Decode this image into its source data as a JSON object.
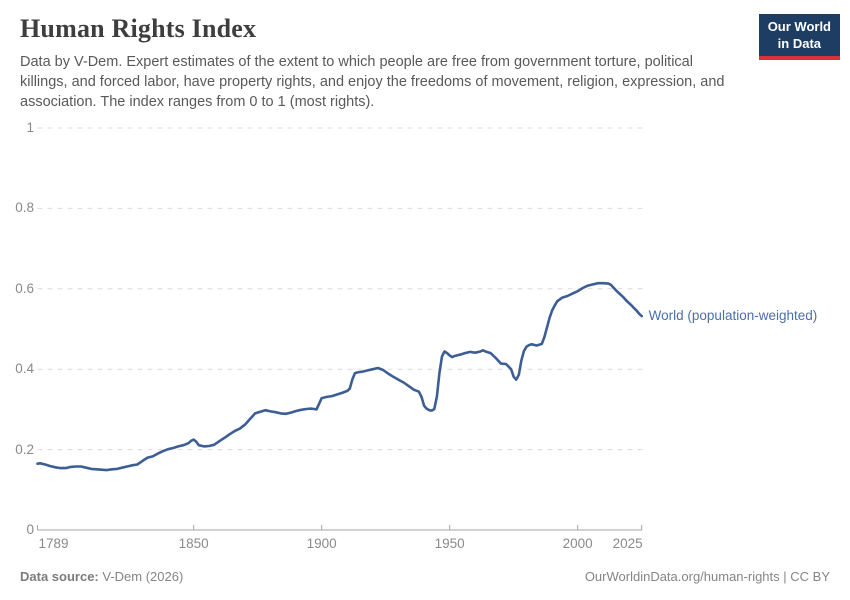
{
  "header": {
    "title": "Human Rights Index",
    "subtitle": "Data by V-Dem. Expert estimates of the extent to which people are free from government torture, political killings, and forced labor, have property rights, and enjoy the freedoms of movement, religion, expression, and association. The index ranges from 0 to 1 (most rights).",
    "logo": {
      "line1": "Our World",
      "line2": "in Data",
      "bg_color": "#1d3d63",
      "accent_color": "#d7333f"
    }
  },
  "chart_data": {
    "type": "line",
    "title": "Human Rights Index",
    "xlabel": "",
    "ylabel": "",
    "xlim": [
      1789,
      2025
    ],
    "ylim": [
      0,
      1
    ],
    "grid": "horizontal dashed gridlines at 0.2 intervals",
    "legend_position": "right-of-line-end",
    "x_ticks": [
      1789,
      1850,
      1900,
      1950,
      2000,
      2025
    ],
    "y_ticks": [
      0,
      0.2,
      0.4,
      0.6,
      0.8,
      1
    ],
    "series": [
      {
        "name": "World (population-weighted)",
        "line_color": "#3d5e95",
        "label_color": "#4c6fab",
        "points": [
          [
            1789,
            0.165
          ],
          [
            1790,
            0.166
          ],
          [
            1792,
            0.163
          ],
          [
            1794,
            0.159
          ],
          [
            1796,
            0.156
          ],
          [
            1798,
            0.154
          ],
          [
            1800,
            0.154
          ],
          [
            1802,
            0.157
          ],
          [
            1804,
            0.158
          ],
          [
            1806,
            0.158
          ],
          [
            1808,
            0.155
          ],
          [
            1810,
            0.152
          ],
          [
            1812,
            0.151
          ],
          [
            1814,
            0.15
          ],
          [
            1816,
            0.149
          ],
          [
            1818,
            0.151
          ],
          [
            1820,
            0.152
          ],
          [
            1822,
            0.155
          ],
          [
            1824,
            0.158
          ],
          [
            1826,
            0.161
          ],
          [
            1828,
            0.163
          ],
          [
            1830,
            0.172
          ],
          [
            1832,
            0.18
          ],
          [
            1834,
            0.183
          ],
          [
            1836,
            0.19
          ],
          [
            1838,
            0.196
          ],
          [
            1840,
            0.201
          ],
          [
            1842,
            0.204
          ],
          [
            1844,
            0.208
          ],
          [
            1846,
            0.211
          ],
          [
            1848,
            0.216
          ],
          [
            1849,
            0.222
          ],
          [
            1850,
            0.225
          ],
          [
            1851,
            0.22
          ],
          [
            1852,
            0.211
          ],
          [
            1854,
            0.208
          ],
          [
            1856,
            0.209
          ],
          [
            1858,
            0.212
          ],
          [
            1860,
            0.221
          ],
          [
            1862,
            0.229
          ],
          [
            1864,
            0.238
          ],
          [
            1866,
            0.246
          ],
          [
            1868,
            0.252
          ],
          [
            1870,
            0.262
          ],
          [
            1872,
            0.276
          ],
          [
            1874,
            0.29
          ],
          [
            1876,
            0.294
          ],
          [
            1878,
            0.298
          ],
          [
            1880,
            0.295
          ],
          [
            1882,
            0.293
          ],
          [
            1884,
            0.29
          ],
          [
            1886,
            0.289
          ],
          [
            1888,
            0.292
          ],
          [
            1890,
            0.296
          ],
          [
            1892,
            0.299
          ],
          [
            1894,
            0.301
          ],
          [
            1896,
            0.302
          ],
          [
            1898,
            0.3
          ],
          [
            1900,
            0.328
          ],
          [
            1902,
            0.331
          ],
          [
            1904,
            0.333
          ],
          [
            1906,
            0.337
          ],
          [
            1908,
            0.341
          ],
          [
            1910,
            0.346
          ],
          [
            1911,
            0.352
          ],
          [
            1912,
            0.375
          ],
          [
            1913,
            0.39
          ],
          [
            1914,
            0.392
          ],
          [
            1916,
            0.394
          ],
          [
            1918,
            0.397
          ],
          [
            1920,
            0.4
          ],
          [
            1922,
            0.403
          ],
          [
            1924,
            0.398
          ],
          [
            1926,
            0.389
          ],
          [
            1928,
            0.381
          ],
          [
            1930,
            0.374
          ],
          [
            1932,
            0.367
          ],
          [
            1934,
            0.358
          ],
          [
            1936,
            0.349
          ],
          [
            1938,
            0.344
          ],
          [
            1939,
            0.331
          ],
          [
            1940,
            0.309
          ],
          [
            1941,
            0.302
          ],
          [
            1942,
            0.298
          ],
          [
            1943,
            0.297
          ],
          [
            1944,
            0.301
          ],
          [
            1945,
            0.332
          ],
          [
            1946,
            0.39
          ],
          [
            1947,
            0.432
          ],
          [
            1948,
            0.444
          ],
          [
            1949,
            0.44
          ],
          [
            1950,
            0.434
          ],
          [
            1951,
            0.43
          ],
          [
            1952,
            0.433
          ],
          [
            1954,
            0.436
          ],
          [
            1956,
            0.44
          ],
          [
            1958,
            0.443
          ],
          [
            1960,
            0.441
          ],
          [
            1962,
            0.444
          ],
          [
            1963,
            0.447
          ],
          [
            1964,
            0.444
          ],
          [
            1966,
            0.44
          ],
          [
            1968,
            0.428
          ],
          [
            1970,
            0.414
          ],
          [
            1972,
            0.413
          ],
          [
            1974,
            0.4
          ],
          [
            1975,
            0.381
          ],
          [
            1976,
            0.374
          ],
          [
            1977,
            0.386
          ],
          [
            1978,
            0.421
          ],
          [
            1979,
            0.445
          ],
          [
            1980,
            0.456
          ],
          [
            1981,
            0.46
          ],
          [
            1982,
            0.462
          ],
          [
            1984,
            0.459
          ],
          [
            1986,
            0.463
          ],
          [
            1987,
            0.48
          ],
          [
            1988,
            0.503
          ],
          [
            1989,
            0.527
          ],
          [
            1990,
            0.546
          ],
          [
            1991,
            0.558
          ],
          [
            1992,
            0.569
          ],
          [
            1994,
            0.578
          ],
          [
            1996,
            0.582
          ],
          [
            1998,
            0.588
          ],
          [
            2000,
            0.594
          ],
          [
            2002,
            0.602
          ],
          [
            2004,
            0.608
          ],
          [
            2006,
            0.611
          ],
          [
            2008,
            0.614
          ],
          [
            2010,
            0.614
          ],
          [
            2012,
            0.613
          ],
          [
            2013,
            0.61
          ],
          [
            2014,
            0.603
          ],
          [
            2015,
            0.596
          ],
          [
            2016,
            0.59
          ],
          [
            2017,
            0.584
          ],
          [
            2018,
            0.578
          ],
          [
            2019,
            0.571
          ],
          [
            2020,
            0.565
          ],
          [
            2021,
            0.559
          ],
          [
            2022,
            0.552
          ],
          [
            2023,
            0.546
          ],
          [
            2024,
            0.538
          ],
          [
            2025,
            0.532
          ]
        ]
      }
    ]
  },
  "footer": {
    "source_label": "Data source:",
    "source_value": " V-Dem (2026)",
    "link": "OurWorldinData.org/human-rights",
    "license_suffix": " | CC BY"
  },
  "colors": {
    "gridline": "#dcdcdc",
    "axis": "#a5a5a5",
    "tick_text": "#8a8a8a"
  }
}
